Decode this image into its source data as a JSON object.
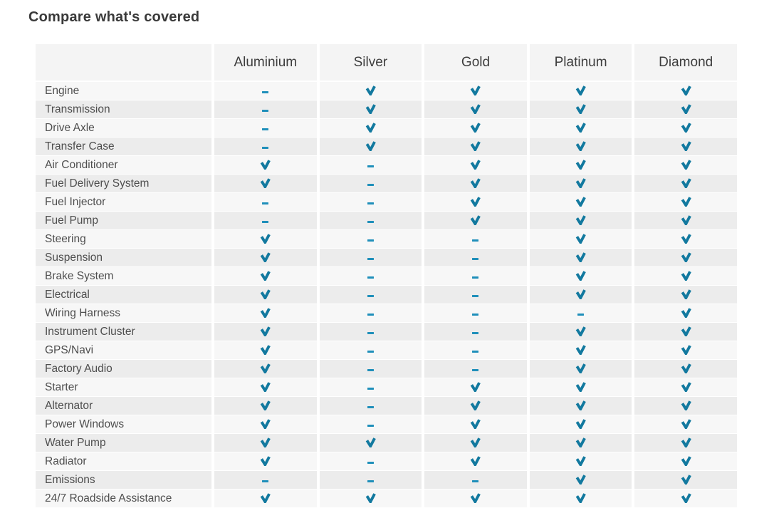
{
  "title": "Compare what's covered",
  "icons": {
    "covered": "check-icon",
    "not_covered": "dash-icon"
  },
  "colors": {
    "check": "#12799f",
    "dash": "#1f8fba",
    "header_bg": "#f4f4f4",
    "row_odd_bg": "#f7f7f7",
    "row_even_bg": "#ececec",
    "title_color": "#3a3a3a",
    "label_color": "#4e4e4e"
  },
  "table": {
    "plans": [
      "Aluminium",
      "Silver",
      "Gold",
      "Platinum",
      "Diamond"
    ],
    "rows": [
      {
        "label": "Engine",
        "covered": [
          false,
          true,
          true,
          true,
          true
        ]
      },
      {
        "label": "Transmission",
        "covered": [
          false,
          true,
          true,
          true,
          true
        ]
      },
      {
        "label": "Drive Axle",
        "covered": [
          false,
          true,
          true,
          true,
          true
        ]
      },
      {
        "label": "Transfer Case",
        "covered": [
          false,
          true,
          true,
          true,
          true
        ]
      },
      {
        "label": "Air Conditioner",
        "covered": [
          true,
          false,
          true,
          true,
          true
        ]
      },
      {
        "label": "Fuel Delivery System",
        "covered": [
          true,
          false,
          true,
          true,
          true
        ]
      },
      {
        "label": "Fuel Injector",
        "covered": [
          false,
          false,
          true,
          true,
          true
        ]
      },
      {
        "label": "Fuel Pump",
        "covered": [
          false,
          false,
          true,
          true,
          true
        ]
      },
      {
        "label": "Steering",
        "covered": [
          true,
          false,
          false,
          true,
          true
        ]
      },
      {
        "label": "Suspension",
        "covered": [
          true,
          false,
          false,
          true,
          true
        ]
      },
      {
        "label": "Brake System",
        "covered": [
          true,
          false,
          false,
          true,
          true
        ]
      },
      {
        "label": "Electrical",
        "covered": [
          true,
          false,
          false,
          true,
          true
        ]
      },
      {
        "label": "Wiring Harness",
        "covered": [
          true,
          false,
          false,
          false,
          true
        ]
      },
      {
        "label": "Instrument Cluster",
        "covered": [
          true,
          false,
          false,
          true,
          true
        ]
      },
      {
        "label": "GPS/Navi",
        "covered": [
          true,
          false,
          false,
          true,
          true
        ]
      },
      {
        "label": "Factory Audio",
        "covered": [
          true,
          false,
          false,
          true,
          true
        ]
      },
      {
        "label": "Starter",
        "covered": [
          true,
          false,
          true,
          true,
          true
        ]
      },
      {
        "label": "Alternator",
        "covered": [
          true,
          false,
          true,
          true,
          true
        ]
      },
      {
        "label": "Power Windows",
        "covered": [
          true,
          false,
          true,
          true,
          true
        ]
      },
      {
        "label": "Water Pump",
        "covered": [
          true,
          true,
          true,
          true,
          true
        ]
      },
      {
        "label": "Radiator",
        "covered": [
          true,
          false,
          true,
          true,
          true
        ]
      },
      {
        "label": "Emissions",
        "covered": [
          false,
          false,
          false,
          true,
          true
        ]
      },
      {
        "label": "24/7 Roadside Assistance",
        "covered": [
          true,
          true,
          true,
          true,
          true
        ]
      }
    ]
  }
}
